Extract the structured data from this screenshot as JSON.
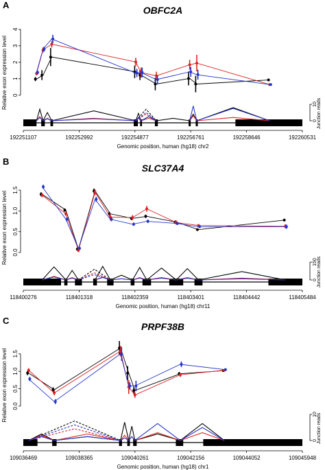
{
  "chart_data": [
    {
      "type": "line",
      "panel": "A",
      "title": "OBFC2A",
      "ylabel": "Relative exon expression level",
      "xlabel": "Genomic position, human (hg18) chr2",
      "x_ticks": [
        "192251107",
        "192252992",
        "192254877",
        "192256761",
        "192258646",
        "192260531"
      ],
      "x_range": [
        192251107,
        192260531
      ],
      "y_ticks": [
        "0",
        "1",
        "2",
        "3",
        "4"
      ],
      "ylim": [
        -0.3,
        4.2
      ],
      "junction_axis_label": "Junction reads",
      "junction_ticks": [
        "0",
        "10"
      ],
      "junction_max": 10,
      "exons": [
        [
          192251107,
          192251553
        ],
        [
          192251712,
          192251833
        ],
        [
          192252023,
          192252112
        ],
        [
          192254835,
          192254975
        ],
        [
          192255052,
          192255115
        ],
        [
          192255550,
          192255650
        ],
        [
          192256690,
          192256760
        ],
        [
          192256930,
          192257000
        ],
        [
          192258270,
          192260531
        ]
      ],
      "exon_positions": [
        192251553,
        192251773,
        192252067,
        192254905,
        192255084,
        192255600,
        192256725,
        192256965,
        192259425
      ],
      "series": [
        {
          "color": "#000000",
          "dashed": false,
          "values": [
            0.98,
            1.22,
            2.32,
            1.42,
            1.22,
            0.68,
            1.02,
            0.68,
            0.93
          ],
          "errors": [
            0.12,
            0.3,
            0.55,
            0.38,
            0.3,
            0.38,
            0.42,
            0.5,
            0.05
          ]
        },
        {
          "color": "#dd2222",
          "dashed": false,
          "values": [
            1.32,
            2.75,
            3.1,
            2.02,
            1.38,
            1.18,
            1.85,
            1.95,
            0.65
          ],
          "errors": [
            0.12,
            0.15,
            0.2,
            0.25,
            0.3,
            0.25,
            0.3,
            0.5,
            0.05
          ]
        },
        {
          "color": "#2233cc",
          "dashed": false,
          "values": [
            1.38,
            2.8,
            3.42,
            1.35,
            1.38,
            0.95,
            1.42,
            1.25,
            0.65
          ],
          "errors": [
            0.12,
            0.15,
            0.25,
            0.25,
            0.3,
            0.25,
            0.3,
            0.3,
            0.05
          ]
        }
      ],
      "junctions": [
        {
          "from": 0,
          "to": 1,
          "color": "#000000",
          "dashed": false,
          "height": 7
        },
        {
          "from": 1,
          "to": 2,
          "color": "#000000",
          "dashed": false,
          "height": 5
        },
        {
          "from": 2,
          "to": 3,
          "color": "#000000",
          "dashed": false,
          "height": 6
        },
        {
          "from": 3,
          "to": 4,
          "color": "#000000",
          "dashed": false,
          "height": 4.5
        },
        {
          "from": 4,
          "to": 5,
          "color": "#000000",
          "dashed": false,
          "height": 2.5
        },
        {
          "from": 5,
          "to": 6,
          "color": "#000000",
          "dashed": false,
          "height": 1.5
        },
        {
          "from": 6,
          "to": 7,
          "color": "#000000",
          "dashed": false,
          "height": 4
        },
        {
          "from": 7,
          "to": 8,
          "color": "#000000",
          "dashed": false,
          "height": 8
        },
        {
          "from": 3,
          "to": 5,
          "color": "#000000",
          "dashed": true,
          "height": 7
        },
        {
          "from": 0,
          "to": 1,
          "color": "#dd2222",
          "dashed": false,
          "height": 2.5
        },
        {
          "from": 1,
          "to": 2,
          "color": "#dd2222",
          "dashed": false,
          "height": 1.5
        },
        {
          "from": 2,
          "to": 3,
          "color": "#dd2222",
          "dashed": false,
          "height": 1.5
        },
        {
          "from": 3,
          "to": 4,
          "color": "#dd2222",
          "dashed": false,
          "height": 1.5
        },
        {
          "from": 4,
          "to": 5,
          "color": "#dd2222",
          "dashed": false,
          "height": 1.5
        },
        {
          "from": 6,
          "to": 7,
          "color": "#dd2222",
          "dashed": false,
          "height": 3
        },
        {
          "from": 7,
          "to": 8,
          "color": "#dd2222",
          "dashed": false,
          "height": 2
        },
        {
          "from": 3,
          "to": 5,
          "color": "#dd2222",
          "dashed": true,
          "height": 4
        },
        {
          "from": 0,
          "to": 1,
          "color": "#2233cc",
          "dashed": false,
          "height": 2
        },
        {
          "from": 1,
          "to": 2,
          "color": "#2233cc",
          "dashed": false,
          "height": 1.2
        },
        {
          "from": 2,
          "to": 3,
          "color": "#2233cc",
          "dashed": false,
          "height": 1.2
        },
        {
          "from": 3,
          "to": 4,
          "color": "#2233cc",
          "dashed": false,
          "height": 2
        },
        {
          "from": 4,
          "to": 5,
          "color": "#2233cc",
          "dashed": false,
          "height": 2.5
        },
        {
          "from": 6,
          "to": 7,
          "color": "#2233cc",
          "dashed": false,
          "height": 9
        },
        {
          "from": 7,
          "to": 8,
          "color": "#2233cc",
          "dashed": false,
          "height": 7.5
        },
        {
          "from": 3,
          "to": 5,
          "color": "#2233cc",
          "dashed": true,
          "height": 5
        }
      ]
    },
    {
      "type": "line",
      "panel": "B",
      "title": "SLC37A4",
      "ylabel": "Relative exon expression level",
      "xlabel": "Genomic position, human (hg18) chr11",
      "x_ticks": [
        "118400276",
        "118401318",
        "118402359",
        "118403401",
        "118404442",
        "118405484"
      ],
      "x_range": [
        118400276,
        118405484
      ],
      "y_ticks": [
        "0.0",
        "0.5",
        "1.0",
        "1.5"
      ],
      "ylim": [
        -0.1,
        1.75
      ],
      "junction_axis_label": "Junction reads",
      "junction_ticks": [
        "0",
        "150"
      ],
      "junction_max": 150,
      "exons": [
        [
          118400276,
          118400980
        ],
        [
          118401040,
          118401100
        ],
        [
          118401240,
          118401370
        ],
        [
          118401580,
          118401650
        ],
        [
          118401840,
          118401960
        ],
        [
          118402280,
          118402350
        ],
        [
          118402500,
          118402660
        ],
        [
          118403000,
          118403260
        ],
        [
          118403470,
          118403620
        ],
        [
          118404850,
          118405484
        ]
      ],
      "exon_positions": [
        118400628,
        118401070,
        118401305,
        118401615,
        118401900,
        118402315,
        118402580,
        118403130,
        118403545,
        118405167
      ],
      "series": [
        {
          "color": "#000000",
          "dashed": false,
          "values": [
            1.4,
            1.02,
            0.08,
            1.48,
            0.93,
            0.82,
            0.87,
            0.73,
            0.55,
            0.78
          ],
          "errors": [
            0.05,
            0.04,
            0.04,
            0.06,
            0.05,
            0.04,
            0.04,
            0.04,
            0.02,
            0.02
          ]
        },
        {
          "color": "#dd2222",
          "dashed": false,
          "values": [
            1.38,
            0.93,
            0.05,
            1.45,
            0.85,
            0.84,
            1.05,
            0.72,
            0.65,
            0.63
          ],
          "errors": [
            0.05,
            0.05,
            0.04,
            0.07,
            0.08,
            0.06,
            0.07,
            0.05,
            0.03,
            0.05
          ]
        },
        {
          "color": "#2233cc",
          "dashed": false,
          "values": [
            1.58,
            0.8,
            0.1,
            1.28,
            0.8,
            0.68,
            0.75,
            0.7,
            0.62,
            0.62
          ],
          "errors": [
            0.05,
            0.05,
            0.03,
            0.06,
            0.05,
            0.04,
            0.04,
            0.04,
            0.03,
            0.05
          ]
        }
      ],
      "junctions": [
        {
          "from": 0,
          "to": 1,
          "color": "#000000",
          "dashed": false,
          "height": 110
        },
        {
          "from": 1,
          "to": 2,
          "color": "#000000",
          "dashed": false,
          "height": 80
        },
        {
          "from": 3,
          "to": 4,
          "color": "#000000",
          "dashed": false,
          "height": 115
        },
        {
          "from": 4,
          "to": 5,
          "color": "#000000",
          "dashed": false,
          "height": 40
        },
        {
          "from": 5,
          "to": 6,
          "color": "#000000",
          "dashed": false,
          "height": 105
        },
        {
          "from": 6,
          "to": 7,
          "color": "#000000",
          "dashed": false,
          "height": 100
        },
        {
          "from": 7,
          "to": 8,
          "color": "#000000",
          "dashed": false,
          "height": 95
        },
        {
          "from": 8,
          "to": 9,
          "color": "#000000",
          "dashed": false,
          "height": 70
        },
        {
          "from": 2,
          "to": 4,
          "color": "#000000",
          "dashed": true,
          "height": 90
        },
        {
          "from": 0,
          "to": 1,
          "color": "#dd2222",
          "dashed": false,
          "height": 30
        },
        {
          "from": 1,
          "to": 2,
          "color": "#dd2222",
          "dashed": false,
          "height": 20
        },
        {
          "from": 3,
          "to": 4,
          "color": "#dd2222",
          "dashed": false,
          "height": 25
        },
        {
          "from": 4,
          "to": 5,
          "color": "#dd2222",
          "dashed": false,
          "height": 10
        },
        {
          "from": 5,
          "to": 6,
          "color": "#dd2222",
          "dashed": false,
          "height": 20
        },
        {
          "from": 6,
          "to": 7,
          "color": "#dd2222",
          "dashed": false,
          "height": 20
        },
        {
          "from": 7,
          "to": 8,
          "color": "#dd2222",
          "dashed": false,
          "height": 20
        },
        {
          "from": 8,
          "to": 9,
          "color": "#dd2222",
          "dashed": false,
          "height": 15
        },
        {
          "from": 2,
          "to": 4,
          "color": "#dd2222",
          "dashed": true,
          "height": 60
        },
        {
          "from": 0,
          "to": 1,
          "color": "#2233cc",
          "dashed": false,
          "height": 25
        },
        {
          "from": 1,
          "to": 2,
          "color": "#2233cc",
          "dashed": false,
          "height": 15
        },
        {
          "from": 3,
          "to": 4,
          "color": "#2233cc",
          "dashed": false,
          "height": 20
        },
        {
          "from": 4,
          "to": 5,
          "color": "#2233cc",
          "dashed": false,
          "height": 10
        },
        {
          "from": 5,
          "to": 6,
          "color": "#2233cc",
          "dashed": false,
          "height": 15
        },
        {
          "from": 6,
          "to": 7,
          "color": "#2233cc",
          "dashed": false,
          "height": 15
        },
        {
          "from": 7,
          "to": 8,
          "color": "#2233cc",
          "dashed": false,
          "height": 15
        },
        {
          "from": 8,
          "to": 9,
          "color": "#2233cc",
          "dashed": false,
          "height": 10
        },
        {
          "from": 2,
          "to": 4,
          "color": "#2233cc",
          "dashed": true,
          "height": 45
        }
      ]
    },
    {
      "type": "line",
      "panel": "C",
      "title": "PRPF38B",
      "ylabel": "Relative exon expression level",
      "xlabel": "Genomic position, human (hg18) chr1",
      "x_ticks": [
        "109036469",
        "109038365",
        "109040261",
        "109042156",
        "109044052",
        "109045948"
      ],
      "x_range": [
        109036469,
        109045948
      ],
      "y_ticks": [
        "0.0",
        "0.5",
        "1.0",
        "1.5"
      ],
      "ylim": [
        -0.1,
        1.85
      ],
      "junction_axis_label": "Junction reads",
      "junction_ticks": [
        "0",
        "10"
      ],
      "junction_max": 10,
      "exons": [
        [
          109036469,
          109036950
        ],
        [
          109037450,
          109037600
        ],
        [
          109039720,
          109039820
        ],
        [
          109040000,
          109040090
        ],
        [
          109040200,
          109040320
        ],
        [
          109041650,
          109041900
        ],
        [
          109042580,
          109045948
        ]
      ],
      "exon_positions": [
        109036650,
        109037520,
        109039770,
        109040050,
        109040260,
        109041800,
        109043300
      ],
      "series": [
        {
          "color": "#000000",
          "dashed": false,
          "values": [
            0.95,
            0.47,
            1.67,
            0.95,
            0.45,
            0.93,
            1.02
          ],
          "errors": [
            0.06,
            0.07,
            0.2,
            0.2,
            0.1,
            0.05,
            0.03
          ]
        },
        {
          "color": "#dd2222",
          "dashed": false,
          "values": [
            1.03,
            0.38,
            1.58,
            0.55,
            0.32,
            0.9,
            1.03
          ],
          "errors": [
            0.06,
            0.07,
            0.15,
            0.2,
            0.08,
            0.06,
            0.03
          ]
        },
        {
          "color": "#2233cc",
          "dashed": false,
          "values": [
            0.78,
            0.13,
            1.5,
            0.58,
            0.58,
            1.2,
            1.05
          ],
          "errors": [
            0.06,
            0.07,
            0.2,
            0.1,
            0.15,
            0.08,
            0.03
          ]
        }
      ],
      "junctions": [
        {
          "from": 0,
          "to": 1,
          "color": "#000000",
          "dashed": false,
          "height": 2.5
        },
        {
          "from": 1,
          "to": 2,
          "color": "#000000",
          "dashed": false,
          "height": 1.5
        },
        {
          "from": 2,
          "to": 3,
          "color": "#000000",
          "dashed": false,
          "height": 7
        },
        {
          "from": 3,
          "to": 4,
          "color": "#000000",
          "dashed": false,
          "height": 5.5
        },
        {
          "from": 4,
          "to": 5,
          "color": "#000000",
          "dashed": false,
          "height": 2.5
        },
        {
          "from": 5,
          "to": 6,
          "color": "#000000",
          "dashed": false,
          "height": 6.5
        },
        {
          "from": 0,
          "to": 2,
          "color": "#000000",
          "dashed": true,
          "height": 7.5
        },
        {
          "from": 0,
          "to": 1,
          "color": "#dd2222",
          "dashed": false,
          "height": 2
        },
        {
          "from": 1,
          "to": 2,
          "color": "#dd2222",
          "dashed": false,
          "height": 2.5
        },
        {
          "from": 2,
          "to": 3,
          "color": "#dd2222",
          "dashed": false,
          "height": 2
        },
        {
          "from": 3,
          "to": 4,
          "color": "#dd2222",
          "dashed": false,
          "height": 1.5
        },
        {
          "from": 4,
          "to": 5,
          "color": "#dd2222",
          "dashed": false,
          "height": 3
        },
        {
          "from": 5,
          "to": 6,
          "color": "#dd2222",
          "dashed": false,
          "height": 3
        },
        {
          "from": 0,
          "to": 2,
          "color": "#dd2222",
          "dashed": true,
          "height": 4.5
        },
        {
          "from": 0,
          "to": 1,
          "color": "#2233cc",
          "dashed": false,
          "height": 1.5
        },
        {
          "from": 1,
          "to": 2,
          "color": "#2233cc",
          "dashed": false,
          "height": 1.5
        },
        {
          "from": 2,
          "to": 3,
          "color": "#2233cc",
          "dashed": false,
          "height": 1
        },
        {
          "from": 3,
          "to": 4,
          "color": "#2233cc",
          "dashed": false,
          "height": 1.5
        },
        {
          "from": 4,
          "to": 5,
          "color": "#2233cc",
          "dashed": false,
          "height": 6.5
        },
        {
          "from": 5,
          "to": 6,
          "color": "#2233cc",
          "dashed": false,
          "height": 5
        },
        {
          "from": 0,
          "to": 2,
          "color": "#2233cc",
          "dashed": true,
          "height": 6
        }
      ]
    }
  ]
}
